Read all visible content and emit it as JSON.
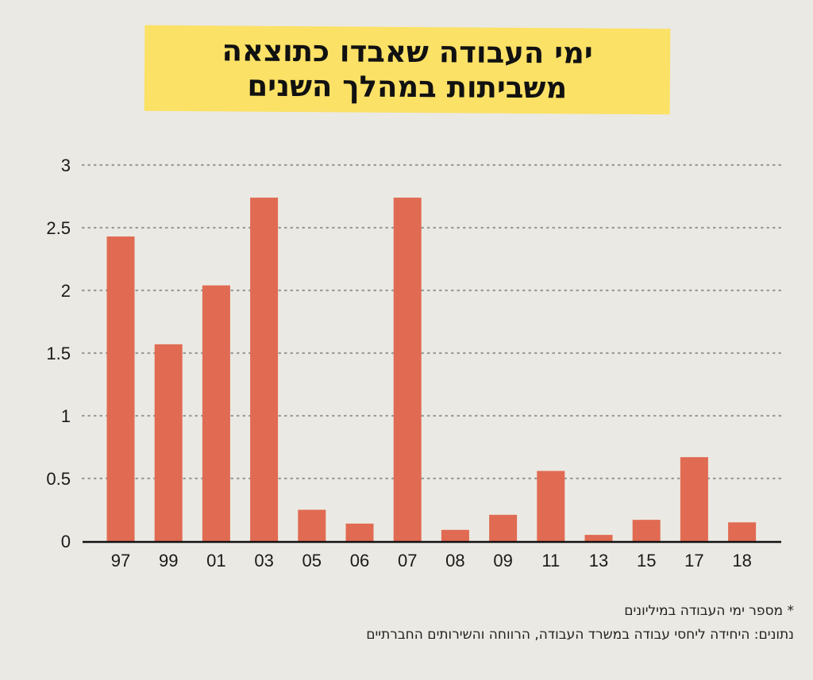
{
  "header": {
    "title_line1": "ימי העבודה שאבדו כתוצאה",
    "title_line2": "משביתות במהלך השנים"
  },
  "colors": {
    "bar": "#e06b52",
    "title_bg": "#fbe166",
    "background": "#ebe9e3",
    "grid": "#9a9a9a"
  },
  "chart_data": {
    "type": "bar",
    "title": "ימי העבודה שאבדו כתוצאה משביתות במהלך השנים",
    "xlabel": "",
    "ylabel": "",
    "categories": [
      "97",
      "99",
      "01",
      "03",
      "05",
      "06",
      "07",
      "08",
      "09",
      "11",
      "13",
      "15",
      "17",
      "18"
    ],
    "values": [
      2.43,
      1.57,
      2.04,
      2.74,
      0.25,
      0.14,
      2.74,
      0.09,
      0.21,
      0.56,
      0.05,
      0.17,
      0.67,
      0.15
    ],
    "ylim": [
      0,
      3
    ],
    "yticks": [
      0,
      0.5,
      1,
      1.5,
      2,
      2.5,
      3
    ],
    "ytick_labels": [
      "0",
      "0.5",
      "1",
      "1.5",
      "2",
      "2.5",
      "3"
    ],
    "grid": "dotted horizontal"
  },
  "notes": {
    "units_note": "* מספר ימי העבודה במיליונים",
    "source_note": "נתונים: היחידה ליחסי עבודה במשרד העבודה, הרווחה והשירותים החברתיים"
  }
}
